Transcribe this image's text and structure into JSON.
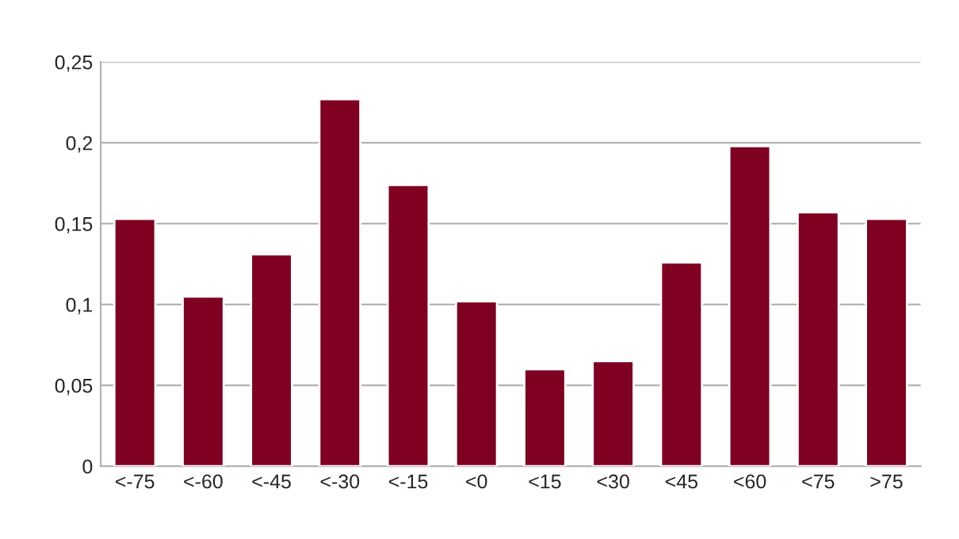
{
  "chart_data": {
    "type": "bar",
    "categories": [
      "<-75",
      "<-60",
      "<-45",
      "<-30",
      "<-15",
      "<0",
      "<15",
      "<30",
      "<45",
      "<60",
      "<75",
      ">75"
    ],
    "values": [
      0.153,
      0.105,
      0.131,
      0.227,
      0.174,
      0.102,
      0.06,
      0.065,
      0.126,
      0.198,
      0.157,
      0.153
    ],
    "color": "#7f0020",
    "ylim": [
      0,
      0.25
    ],
    "yticks": [
      0,
      {
        "value": 0.05,
        "label": "0,05"
      },
      {
        "value": 0.1,
        "label": "0,1"
      },
      {
        "value": 0.15,
        "label": "0,15"
      },
      {
        "value": 0.2,
        "label": "0,2"
      },
      {
        "value": 0.25,
        "label": "0,25"
      }
    ],
    "grid": "y"
  }
}
